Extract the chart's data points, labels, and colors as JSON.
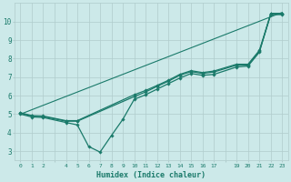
{
  "xlabel": "Humidex (Indice chaleur)",
  "ylabel": "",
  "background_color": "#cce9e9",
  "grid_color": "#b0cccc",
  "line_color": "#1a7a6a",
  "xlim": [
    -0.5,
    23.5
  ],
  "ylim": [
    2.5,
    11.0
  ],
  "x_ticks": [
    0,
    1,
    2,
    3,
    4,
    5,
    6,
    7,
    8,
    9,
    10,
    11,
    12,
    13,
    14,
    15,
    16,
    17,
    18,
    19,
    20,
    21,
    22,
    23
  ],
  "x_tick_labels": [
    "0",
    "1",
    "2",
    "",
    "4",
    "5",
    "6",
    "7",
    "8",
    "9",
    "10",
    "11",
    "12",
    "13",
    "14",
    "15",
    "16",
    "17",
    "",
    "19",
    "20",
    "21",
    "22",
    "23"
  ],
  "y_ticks": [
    3,
    4,
    5,
    6,
    7,
    8,
    9,
    10
  ],
  "lines": [
    {
      "x": [
        0,
        23
      ],
      "y": [
        5.0,
        10.5
      ],
      "marker": null,
      "markersize": 0,
      "linewidth": 0.8,
      "linestyle": "-"
    },
    {
      "x": [
        0,
        1,
        2,
        4,
        5,
        6,
        7,
        8,
        9,
        10,
        11,
        12,
        13,
        14,
        15,
        16,
        17,
        19,
        20,
        21,
        22,
        23
      ],
      "y": [
        5.0,
        4.85,
        4.82,
        4.55,
        4.42,
        3.25,
        2.95,
        3.85,
        4.72,
        5.8,
        6.05,
        6.35,
        6.65,
        6.95,
        7.2,
        7.1,
        7.15,
        7.55,
        7.6,
        8.35,
        10.45,
        10.45
      ],
      "marker": "D",
      "markersize": 1.8,
      "linewidth": 0.9,
      "linestyle": "-"
    },
    {
      "x": [
        0,
        1,
        2,
        4,
        5,
        10,
        11,
        12,
        13,
        14,
        15,
        16,
        17,
        19,
        20,
        21,
        22,
        23
      ],
      "y": [
        5.05,
        4.9,
        4.87,
        4.62,
        4.62,
        5.95,
        6.2,
        6.5,
        6.78,
        7.1,
        7.3,
        7.2,
        7.28,
        7.65,
        7.65,
        8.4,
        10.38,
        10.38
      ],
      "marker": "D",
      "markersize": 1.8,
      "linewidth": 0.9,
      "linestyle": "-"
    },
    {
      "x": [
        0,
        1,
        2,
        4,
        5,
        10,
        11,
        12,
        13,
        14,
        15,
        16,
        17,
        19,
        20,
        21,
        22,
        23
      ],
      "y": [
        5.08,
        4.92,
        4.9,
        4.65,
        4.65,
        6.05,
        6.28,
        6.55,
        6.83,
        7.15,
        7.35,
        7.25,
        7.33,
        7.7,
        7.7,
        8.45,
        10.42,
        10.42
      ],
      "marker": "D",
      "markersize": 1.8,
      "linewidth": 0.9,
      "linestyle": "-"
    }
  ]
}
